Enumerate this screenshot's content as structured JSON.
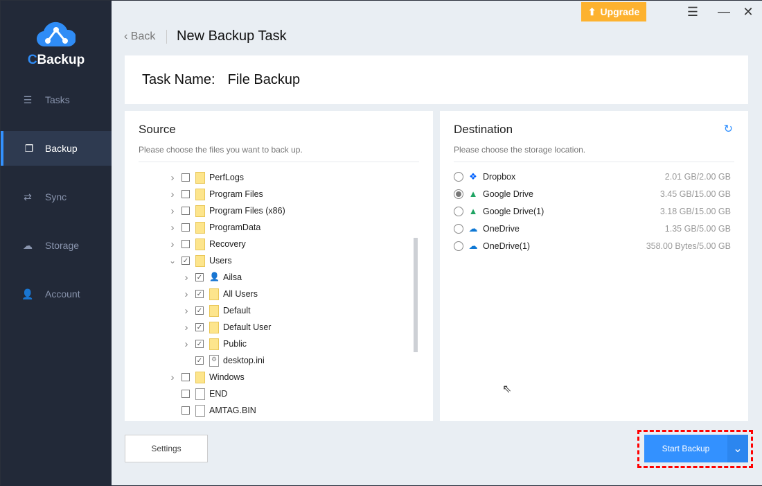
{
  "app": {
    "brand_prefix": "C",
    "brand_rest": "Backup"
  },
  "sidebar": {
    "items": [
      {
        "label": "Tasks",
        "icon": "list-icon"
      },
      {
        "label": "Backup",
        "icon": "backup-icon",
        "active": true
      },
      {
        "label": "Sync",
        "icon": "sync-icon"
      },
      {
        "label": "Storage",
        "icon": "cloud-icon"
      },
      {
        "label": "Account",
        "icon": "user-icon"
      }
    ]
  },
  "header": {
    "upgrade": "Upgrade",
    "back": "Back",
    "title": "New Backup Task"
  },
  "task": {
    "label": "Task Name:",
    "value": "File Backup"
  },
  "source": {
    "title": "Source",
    "subtitle": "Please choose the files you want to back up.",
    "tree": [
      {
        "name": "PerfLogs",
        "level": 0,
        "type": "folder",
        "expand": ">",
        "checked": false
      },
      {
        "name": "Program Files",
        "level": 0,
        "type": "folder",
        "expand": ">",
        "checked": false
      },
      {
        "name": "Program Files (x86)",
        "level": 0,
        "type": "folder",
        "expand": ">",
        "checked": false
      },
      {
        "name": "ProgramData",
        "level": 0,
        "type": "folder",
        "expand": ">",
        "checked": false
      },
      {
        "name": "Recovery",
        "level": 0,
        "type": "folder",
        "expand": ">",
        "checked": false
      },
      {
        "name": "Users",
        "level": 0,
        "type": "folder",
        "expand": "v",
        "checked": true
      },
      {
        "name": "Ailsa",
        "level": 1,
        "type": "user",
        "expand": ">",
        "checked": true
      },
      {
        "name": "All Users",
        "level": 1,
        "type": "folder-link",
        "expand": ">",
        "checked": true
      },
      {
        "name": "Default",
        "level": 1,
        "type": "folder",
        "expand": ">",
        "checked": true
      },
      {
        "name": "Default User",
        "level": 1,
        "type": "folder-link",
        "expand": ">",
        "checked": true
      },
      {
        "name": "Public",
        "level": 1,
        "type": "folder",
        "expand": ">",
        "checked": true
      },
      {
        "name": "desktop.ini",
        "level": 1,
        "type": "settings-file",
        "expand": "",
        "checked": true
      },
      {
        "name": "Windows",
        "level": 0,
        "type": "folder",
        "expand": ">",
        "checked": false
      },
      {
        "name": "END",
        "level": 0,
        "type": "file",
        "expand": "",
        "checked": false
      },
      {
        "name": "AMTAG.BIN",
        "level": 0,
        "type": "file",
        "expand": "",
        "checked": false
      }
    ]
  },
  "destination": {
    "title": "Destination",
    "subtitle": "Please choose the storage location.",
    "items": [
      {
        "name": "Dropbox",
        "size": "2.01 GB/2.00 GB",
        "icon": "dropbox-icon",
        "selected": false
      },
      {
        "name": "Google Drive",
        "size": "3.45 GB/15.00 GB",
        "icon": "google-drive-icon",
        "selected": true
      },
      {
        "name": "Google Drive(1)",
        "size": "3.18 GB/15.00 GB",
        "icon": "google-drive-icon",
        "selected": false
      },
      {
        "name": "OneDrive",
        "size": "1.35 GB/5.00 GB",
        "icon": "onedrive-icon",
        "selected": false
      },
      {
        "name": "OneDrive(1)",
        "size": "358.00 Bytes/5.00 GB",
        "icon": "onedrive-icon",
        "selected": false
      }
    ]
  },
  "footer": {
    "settings": "Settings",
    "start": "Start Backup"
  },
  "colors": {
    "accent": "#3391ff",
    "upgrade": "#fdb22f",
    "sidebar": "#222938",
    "highlight": "#ff0000"
  }
}
